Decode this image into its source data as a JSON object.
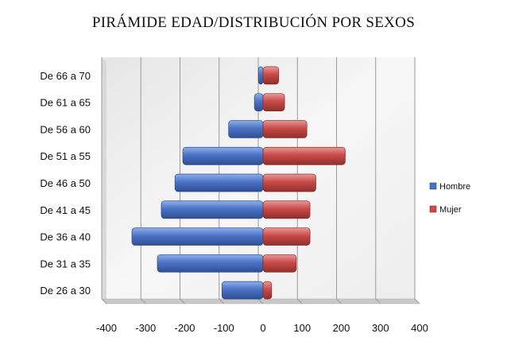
{
  "chart_data": {
    "type": "bar",
    "orientation": "horizontal",
    "title": "PIRÁMIDE EDAD/DISTRIBUCIÓN POR SEXOS",
    "categories": [
      "De 26 a 30",
      "De 31 a 35",
      "De 36 a 40",
      "De 41 a 45",
      "De 46 a 50",
      "De 51 a 55",
      "De 56 a 60",
      "De 61 a 65",
      "De 66 a 70"
    ],
    "series": [
      {
        "name": "Hombre",
        "color": "#4a72c4",
        "values": [
          -105,
          -270,
          -335,
          -260,
          -225,
          -205,
          -88,
          -22,
          -12
        ]
      },
      {
        "name": "Mujer",
        "color": "#c94a48",
        "values": [
          22,
          85,
          120,
          120,
          135,
          210,
          112,
          55,
          40
        ]
      }
    ],
    "xlim": [
      -400,
      400
    ],
    "xticks": [
      -400,
      -300,
      -200,
      -100,
      0,
      100,
      200,
      300,
      400
    ],
    "grid": true,
    "legend_position": "right"
  }
}
